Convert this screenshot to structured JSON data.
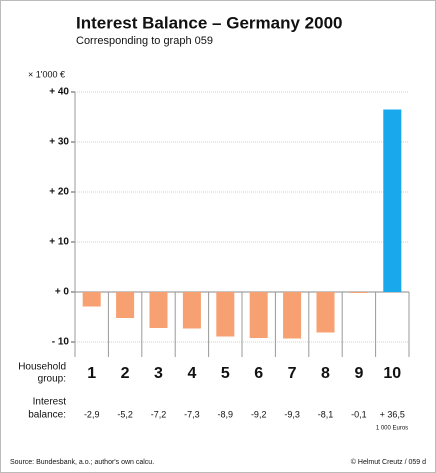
{
  "chart_data": {
    "type": "bar",
    "title": "Interest Balance  –  Germany 2000",
    "subtitle": "Corresponding to graph 059",
    "y_unit": "× 1'000 €",
    "x_label_lines": [
      "Household",
      "group:"
    ],
    "value_row_label_lines": [
      "Interest",
      "balance:"
    ],
    "value_unit": "1 000 Euros",
    "source": "Source: Bundesbank, a.o.; author's own calcu.",
    "credit": "© Helmut Creutz / 059 d",
    "categories": [
      "1",
      "2",
      "3",
      "4",
      "5",
      "6",
      "7",
      "8",
      "9",
      "10"
    ],
    "values": [
      -2.9,
      -5.2,
      -7.2,
      -7.3,
      -8.9,
      -9.2,
      -9.3,
      -8.1,
      -0.1,
      36.5
    ],
    "value_labels": [
      "-2,9",
      "-5,2",
      "-7,2",
      "-7,3",
      "-8,9",
      "-9,2",
      "-9,3",
      "-8,1",
      "-0,1",
      "+ 36,5"
    ],
    "colors": [
      "#f7a173",
      "#f7a173",
      "#f7a173",
      "#f7a173",
      "#f7a173",
      "#f7a173",
      "#f7a173",
      "#f7a173",
      "#f7a173",
      "#1aa8ec"
    ],
    "ylim": [
      -13,
      40
    ],
    "yticks": [
      {
        "value": 40,
        "label": "+ 40"
      },
      {
        "value": 30,
        "label": "+ 30"
      },
      {
        "value": 20,
        "label": "+ 20"
      },
      {
        "value": 10,
        "label": "+ 10"
      },
      {
        "value": 0,
        "label": "+ 0"
      },
      {
        "value": -10,
        "label": "- 10"
      }
    ],
    "grid": true
  }
}
